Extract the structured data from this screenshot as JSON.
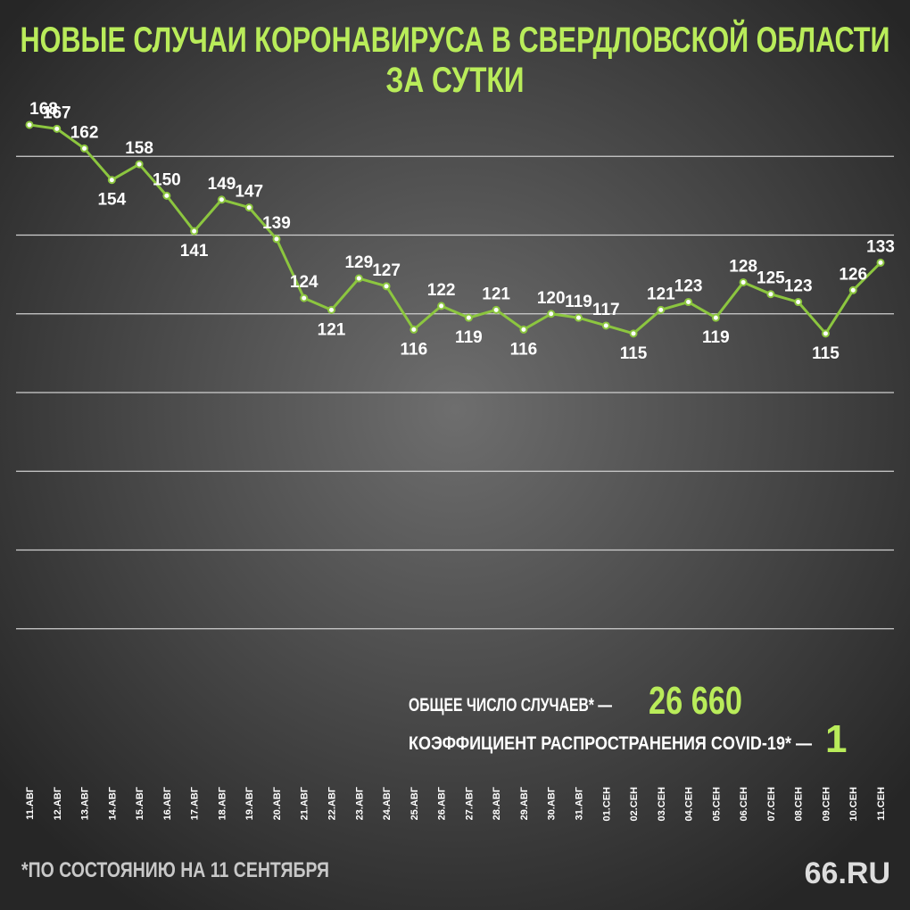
{
  "chart_data": {
    "type": "line",
    "title_lines": [
      "НОВЫЕ СЛУЧАИ КОРОНАВИРУСА В СВЕРДЛОВСКОЙ ОБЛАСТИ",
      "ЗА СУТКИ"
    ],
    "categories": [
      "11.АВГ",
      "12.АВГ",
      "13.АВГ",
      "14.АВГ",
      "15.АВГ",
      "16.АВГ",
      "17.АВГ",
      "18.АВГ",
      "19.АВГ",
      "20.АВГ",
      "21.АВГ",
      "22.АВГ",
      "23.АВГ",
      "24.АВГ",
      "25.АВГ",
      "26.АВГ",
      "27.АВГ",
      "28.АВГ",
      "29.АВГ",
      "30.АВГ",
      "31.АВГ",
      "01.СЕН",
      "02.СЕН",
      "03.СЕН",
      "04.СЕН",
      "05.СЕН",
      "06.СЕН",
      "07.СЕН",
      "08.СЕН",
      "09.СЕН",
      "10.СЕН",
      "11.СЕН"
    ],
    "values": [
      168,
      167,
      162,
      154,
      158,
      150,
      141,
      149,
      147,
      139,
      124,
      121,
      129,
      127,
      116,
      122,
      119,
      121,
      116,
      120,
      119,
      117,
      115,
      121,
      123,
      119,
      128,
      125,
      123,
      115,
      126,
      133
    ],
    "color": "#8cc63f",
    "ylim": [
      20,
      180
    ],
    "yticks": [
      40,
      60,
      80,
      100,
      120,
      140,
      160
    ],
    "grid": true,
    "stats": [
      {
        "label": "ОБЩЕЕ ЧИСЛО СЛУЧАЕВ* —",
        "value": "26 660"
      },
      {
        "label": "КОЭФФИЦИЕНТ РАСПРОСТРАНЕНИЯ COVID-19* —",
        "value": "1"
      }
    ],
    "footnote": "*ПО СОСТОЯНИЮ НА 11 СЕНТЯБРЯ",
    "logo": "66.RU"
  }
}
